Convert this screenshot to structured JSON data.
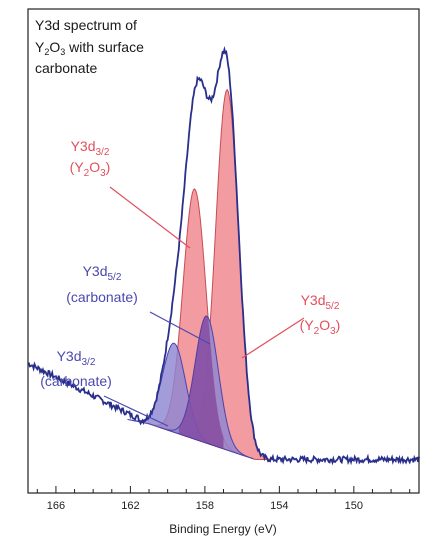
{
  "chart_data": {
    "type": "line",
    "title_lines": [
      {
        "pre": "Y3d spectrum of",
        "sub": "",
        "post": ""
      },
      {
        "pre": "Y",
        "sub": "2",
        "mid": "O",
        "sub2": "3",
        "post": " with surface"
      },
      {
        "pre": "carbonate",
        "sub": "",
        "post": ""
      }
    ],
    "xlabel": "Binding Energy (eV)",
    "ylabel": "",
    "x_reversed": true,
    "xlim": [
      167.5,
      146.5
    ],
    "ylim": [
      0,
      100
    ],
    "xticks_major": [
      166,
      162,
      158,
      154,
      150
    ],
    "xticks_minor": [
      167,
      165,
      164,
      163,
      161,
      160,
      159,
      157,
      156,
      155,
      153,
      152,
      151,
      149,
      148,
      147
    ],
    "colors": {
      "envelope": "#2a2f8c",
      "y2o3_fill": "#f08a8f",
      "y2o3_stroke": "#c94c55",
      "carbonate_fill": "#8d86d2",
      "carbonate_stroke": "#4a44a8",
      "overlap_fill": "#7a2c8a",
      "ann_red": "#e0505c",
      "ann_blue": "#4b48b0",
      "baseline": "#555555"
    },
    "series": [
      {
        "center": 156.8,
        "height": 85,
        "sigma": 0.62
      },
      {
        "center": 158.55,
        "height": 59,
        "sigma": 0.62
      },
      {
        "center": 157.9,
        "height": 30,
        "sigma": 0.62
      },
      {
        "center": 159.65,
        "height": 21,
        "sigma": 0.62
      }
    ],
    "annotations": [
      {
        "line1": "Y3d",
        "sub": "3/2",
        "line2_pre": "(Y",
        "line2_sub": "2",
        "line2_mid": "O",
        "line2_sub2": "3",
        "line2_post": ")",
        "color": "ann_red"
      },
      {
        "line1": "Y3d",
        "sub": "5/2",
        "line2_pre": "(carbonate)",
        "line2_sub": "",
        "line2_mid": "",
        "line2_sub2": "",
        "line2_post": "",
        "color": "ann_blue"
      },
      {
        "line1": "Y3d",
        "sub": "5/2",
        "line2_pre": "(Y",
        "line2_sub": "2",
        "line2_mid": "O",
        "line2_sub2": "3",
        "line2_post": ")",
        "color": "ann_red"
      },
      {
        "line1": "Y3d",
        "sub": "3/2",
        "line2_pre": "(carbonate)",
        "line2_sub": "",
        "line2_mid": "",
        "line2_sub2": "",
        "line2_post": "",
        "color": "ann_blue"
      }
    ]
  }
}
